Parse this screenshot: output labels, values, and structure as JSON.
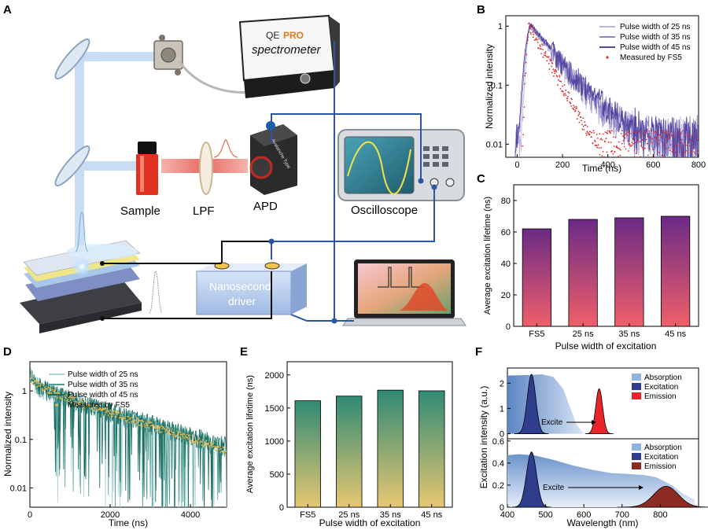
{
  "panels": {
    "a": {
      "letter": "A",
      "labels": {
        "sample": "Sample",
        "lpf": "LPF",
        "apd": "APD",
        "oscilloscope": "Oscilloscope",
        "spectrometer_brand_a": "QE",
        "spectrometer_brand_b": "PRO",
        "spectrometer": "spectrometer",
        "driver_line1": "Nanosecond",
        "driver_line2": "driver",
        "apd_brand": "Avalanche Type"
      },
      "colors": {
        "beam_blue": "#9cc3ea",
        "beam_red": "#e8463a",
        "wire": "#2a56a6",
        "driver": "#b9cff0"
      }
    },
    "b": {
      "letter": "B"
    },
    "c": {
      "letter": "C"
    },
    "d": {
      "letter": "D"
    },
    "e": {
      "letter": "E"
    },
    "f": {
      "letter": "F"
    }
  },
  "chart_data": [
    {
      "id": "B",
      "type": "line",
      "xlabel": "Time (ns)",
      "ylabel": "Normalized intensity",
      "xlim": [
        -50,
        800
      ],
      "ylim": [
        0.006,
        1.5
      ],
      "yscale": "log",
      "xticks": [
        "0",
        "200",
        "400",
        "600",
        "800"
      ],
      "yticks": [
        "0.01",
        "0.1",
        "1"
      ],
      "series": [
        {
          "name": "Pulse width of 25 ns",
          "color": "#b9b7e0",
          "peak": 60,
          "rise": 18,
          "tau": 88
        },
        {
          "name": "Pulse width of 35 ns",
          "color": "#8c86c6",
          "peak": 60,
          "rise": 22,
          "tau": 92
        },
        {
          "name": "Pulse width of 45 ns",
          "color": "#5546a0",
          "peak": 62,
          "rise": 26,
          "tau": 96
        },
        {
          "name": "Measured by FS5",
          "color": "#e0282a",
          "style": "dots",
          "peak": 55,
          "rise": 14,
          "tau": 62
        }
      ]
    },
    {
      "id": "C",
      "type": "bar",
      "categories": [
        "FS5",
        "25 ns",
        "35 ns",
        "45 ns"
      ],
      "values": [
        62,
        68,
        69,
        70
      ],
      "xlabel": "Pulse width of excitation",
      "ylabel": "Average excitation lifetime (ns)",
      "ylim": [
        0,
        90
      ],
      "yticks": [
        "0",
        "20",
        "40",
        "60",
        "80"
      ],
      "gradient": [
        "#6a2a86",
        "#ef5f6a"
      ]
    },
    {
      "id": "D",
      "type": "line",
      "xlabel": "Time (ns)",
      "ylabel": "Normalized intensity",
      "xlim": [
        0,
        4900
      ],
      "ylim": [
        0.004,
        4
      ],
      "yscale": "log",
      "xticks": [
        "0",
        "2000",
        "4000"
      ],
      "yticks": [
        "0.01",
        "0.1",
        "1"
      ],
      "series": [
        {
          "name": "Pulse width of 25 ns",
          "color": "#a9d2d6",
          "tau": 1640
        },
        {
          "name": "Pulse width of 35 ns",
          "color": "#4f9c93",
          "tau": 1700
        },
        {
          "name": "Pulse width of 45 ns",
          "color": "#156b5d",
          "tau": 1760
        },
        {
          "name": "Measured by FS5",
          "color": "#f2b640",
          "style": "dots",
          "tau": 1610
        }
      ]
    },
    {
      "id": "E",
      "type": "bar",
      "categories": [
        "FS5",
        "25 ns",
        "35 ns",
        "45 ns"
      ],
      "values": [
        1610,
        1680,
        1770,
        1760
      ],
      "xlabel": "Pulse width of excitation",
      "ylabel": "Average excitation lifetime (ns)",
      "ylim": [
        0,
        2200
      ],
      "yticks": [
        "0",
        "500",
        "1000",
        "1500",
        "2000"
      ],
      "gradient": [
        "#2f8a74",
        "#e7c772"
      ]
    },
    {
      "id": "F",
      "type": "area",
      "xlabel": "Wavelength (nm)",
      "ylabel": "Excitation intensity (a.u.)",
      "xlim": [
        400,
        900
      ],
      "xticks": [
        "400",
        "500",
        "600",
        "700",
        "800"
      ],
      "subplots": [
        {
          "ylim": [
            -0.2,
            2.6
          ],
          "yticks": [
            "0",
            "1",
            "2"
          ],
          "annotation": "Excite",
          "legend": [
            "Absorption",
            "Excitation",
            "Emission"
          ],
          "colors": {
            "absorption": "#8db4e0",
            "excitation": "#2e3d8c",
            "emission": "#e8252a"
          },
          "absorption": [
            [
              400,
              2.3
            ],
            [
              450,
              2.32
            ],
            [
              490,
              2.35
            ],
            [
              520,
              2.25
            ],
            [
              545,
              1.8
            ],
            [
              565,
              1.0
            ],
            [
              580,
              0.4
            ],
            [
              595,
              0.08
            ],
            [
              610,
              0.0
            ]
          ],
          "excitation": {
            "center": 463,
            "width": 11,
            "height": 2.35
          },
          "emission": {
            "center": 640,
            "width": 9,
            "height": 1.78
          }
        },
        {
          "ylim": [
            0,
            0.62
          ],
          "yticks": [
            "0",
            "0.2",
            "0.4",
            "0.6"
          ],
          "annotation": "Excite",
          "legend": [
            "Absorption",
            "Excitation",
            "Emission"
          ],
          "colors": {
            "absorption": "#8db4e0",
            "excitation": "#2e3d8c",
            "emission": "#8d2a22"
          },
          "absorption": [
            [
              400,
              0.47
            ],
            [
              430,
              0.48
            ],
            [
              470,
              0.47
            ],
            [
              520,
              0.43
            ],
            [
              570,
              0.38
            ],
            [
              620,
              0.34
            ],
            [
              670,
              0.31
            ],
            [
              720,
              0.3
            ],
            [
              760,
              0.29
            ],
            [
              790,
              0.27
            ],
            [
              830,
              0.2
            ],
            [
              860,
              0.12
            ],
            [
              890,
              0.07
            ]
          ],
          "excitation": {
            "center": 463,
            "width": 13,
            "height": 0.5
          },
          "emission": {
            "center": 815,
            "width": 32,
            "height": 0.19
          }
        }
      ]
    }
  ]
}
